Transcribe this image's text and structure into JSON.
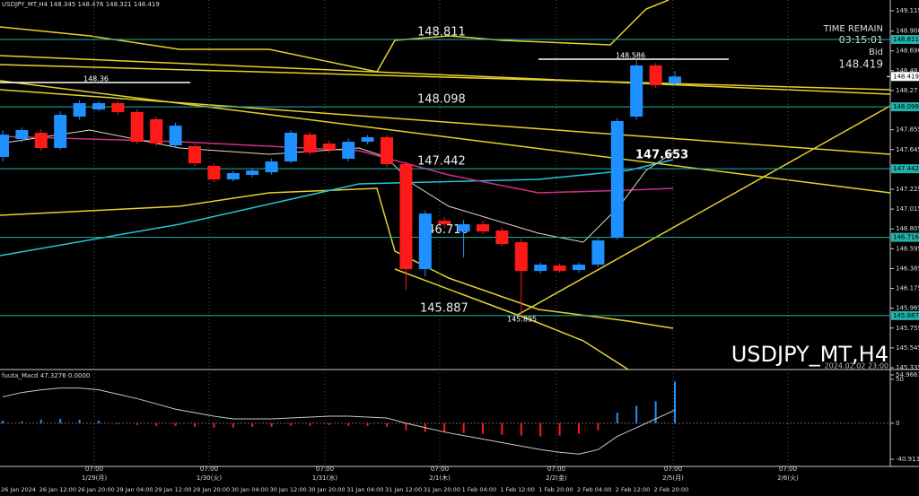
{
  "chart_data": [
    {
      "type": "candlestick",
      "title": "USDJPY_MT,H4  148.345 148.476 148.321 148.419",
      "watermark": "USDJPY_MT,H4",
      "watermark_time": "2024.02.02 23:00",
      "info": [
        "TIME REMAIN",
        "03:15:01",
        "Bid",
        "148.419"
      ],
      "current_price": 148.419,
      "current_price_label": "148.419",
      "up_color": "#1e90ff",
      "down_color": "#ff1a1a",
      "ylim": [
        145.335,
        149.115
      ],
      "yticks": [
        149.115,
        {
          "value": 148.9,
          "label": "148.900"
        },
        {
          "value": 148.69,
          "label": "148.690"
        },
        148.48,
        148.27,
        147.855,
        147.645,
        147.225,
        147.015,
        146.805,
        146.595,
        146.385,
        146.175,
        145.965,
        145.755,
        145.545,
        145.335
      ],
      "categories": [
        "26 Jan 2024",
        null,
        "26 Jan 12:00",
        null,
        "26 Jan 20:00",
        null,
        "29 Jan 04:00",
        null,
        "29 Jan 12:00",
        null,
        "29 Jan 20:00",
        null,
        "30 Jan 04:00",
        null,
        "30 Jan 12:00",
        null,
        "30 Jan 20:00",
        null,
        "31 Jan 04:00",
        null,
        "31 Jan 12:00",
        null,
        "31 Jan 20:00",
        null,
        "1 Feb 04:00",
        null,
        "1 Feb 12:00",
        null,
        "1 Feb 20:00",
        null,
        "2 Feb 04:00",
        null,
        "2 Feb 12:00",
        null,
        "2 Feb 20:00",
        null
      ],
      "open": [
        147.567,
        147.757,
        147.823,
        147.662,
        147.994,
        148.07,
        148.137,
        148.042,
        147.966,
        147.69,
        147.681,
        147.472,
        147.329,
        147.377,
        147.405,
        147.519,
        147.804,
        147.709,
        147.548,
        147.728,
        147.776,
        147.491,
        146.379,
        146.892,
        146.778,
        146.854,
        146.788,
        146.664,
        146.36,
        146.417,
        146.37,
        146.427,
        146.712,
        147.994,
        148.536,
        148.345
      ],
      "high": [
        147.85,
        147.88,
        147.86,
        148.05,
        148.17,
        148.16,
        148.16,
        148.07,
        147.99,
        147.93,
        147.71,
        147.5,
        147.42,
        147.45,
        147.55,
        147.85,
        147.83,
        147.74,
        147.76,
        147.8,
        147.8,
        147.52,
        147.0,
        146.93,
        146.9,
        146.89,
        146.82,
        146.7,
        146.45,
        146.44,
        146.45,
        146.71,
        147.98,
        148.586,
        148.56,
        148.476
      ],
      "low": [
        147.52,
        147.72,
        147.63,
        147.64,
        147.96,
        148.05,
        148.01,
        147.7,
        147.68,
        147.66,
        147.47,
        147.3,
        147.31,
        147.35,
        147.38,
        147.5,
        147.59,
        147.61,
        147.52,
        147.7,
        147.46,
        146.16,
        146.3,
        146.82,
        146.5,
        146.75,
        146.62,
        145.895,
        146.33,
        146.34,
        146.34,
        146.4,
        146.69,
        147.96,
        148.3,
        148.321
      ],
      "close": [
        147.804,
        147.852,
        147.662,
        148.013,
        148.137,
        148.137,
        148.042,
        147.728,
        147.709,
        147.899,
        147.5,
        147.329,
        147.396,
        147.424,
        147.519,
        147.823,
        147.614,
        147.643,
        147.728,
        147.776,
        147.491,
        146.379,
        146.968,
        146.854,
        146.854,
        146.778,
        146.645,
        146.36,
        146.427,
        146.36,
        146.427,
        146.683,
        147.947,
        148.536,
        148.327,
        148.419
      ],
      "levels": [
        {
          "value": 148.811,
          "label": "148.811"
        },
        {
          "value": 148.098,
          "label": "148.098"
        },
        {
          "value": 147.442,
          "label": "147.442"
        },
        {
          "value": 146.716,
          "label": "146.716"
        },
        {
          "value": 145.887,
          "label": "145.887"
        }
      ],
      "level_color": "#20b2aa",
      "annotations": [
        "148.586",
        "148.36",
        "145.895",
        "147.653"
      ],
      "time_markers": [
        {
          "time": "07:00",
          "date": "1/29(月)"
        },
        {
          "time": "07:00",
          "date": "1/30(火)"
        },
        {
          "time": "07:00",
          "date": "1/31(水)"
        },
        {
          "time": "07:00",
          "date": "2/1(木)"
        },
        {
          "time": "07:00",
          "date": "2/2(金)"
        },
        {
          "time": "07:00",
          "date": "2/5(月)"
        },
        {
          "time": "07:00",
          "date": "2/6(火)"
        }
      ]
    },
    {
      "type": "bar",
      "title": "fuuta_Macd 47.3276  0.0000",
      "ylim": [
        -40.9131,
        54.9661
      ],
      "yticks": [
        54.9661,
        50,
        0,
        -40.9131
      ],
      "series": [
        {
          "name": "Macd",
          "color": "#1e90ff",
          "neg_color": "#ff1a1a",
          "values": [
            3,
            2,
            4,
            5,
            4,
            3,
            -1,
            -2,
            -3,
            -3,
            -4,
            -5,
            -5,
            -4,
            -4,
            -3,
            -3,
            -2,
            -3,
            -3,
            -4,
            -8,
            -10,
            -10,
            -11,
            -12,
            -13,
            -14,
            -15,
            -14,
            -12,
            -8,
            12,
            20,
            25,
            47.3276
          ]
        },
        {
          "name": "Signal",
          "color": "#c8c8c8",
          "values": [
            30,
            35,
            38,
            40,
            40,
            38,
            33,
            28,
            22,
            16,
            12,
            8,
            5,
            5,
            5,
            6,
            7,
            8,
            8,
            7,
            6,
            0,
            -5,
            -10,
            -14,
            -18,
            -22,
            -26,
            -30,
            -33,
            -35,
            -30,
            -15,
            -5,
            5,
            15
          ]
        }
      ]
    }
  ]
}
